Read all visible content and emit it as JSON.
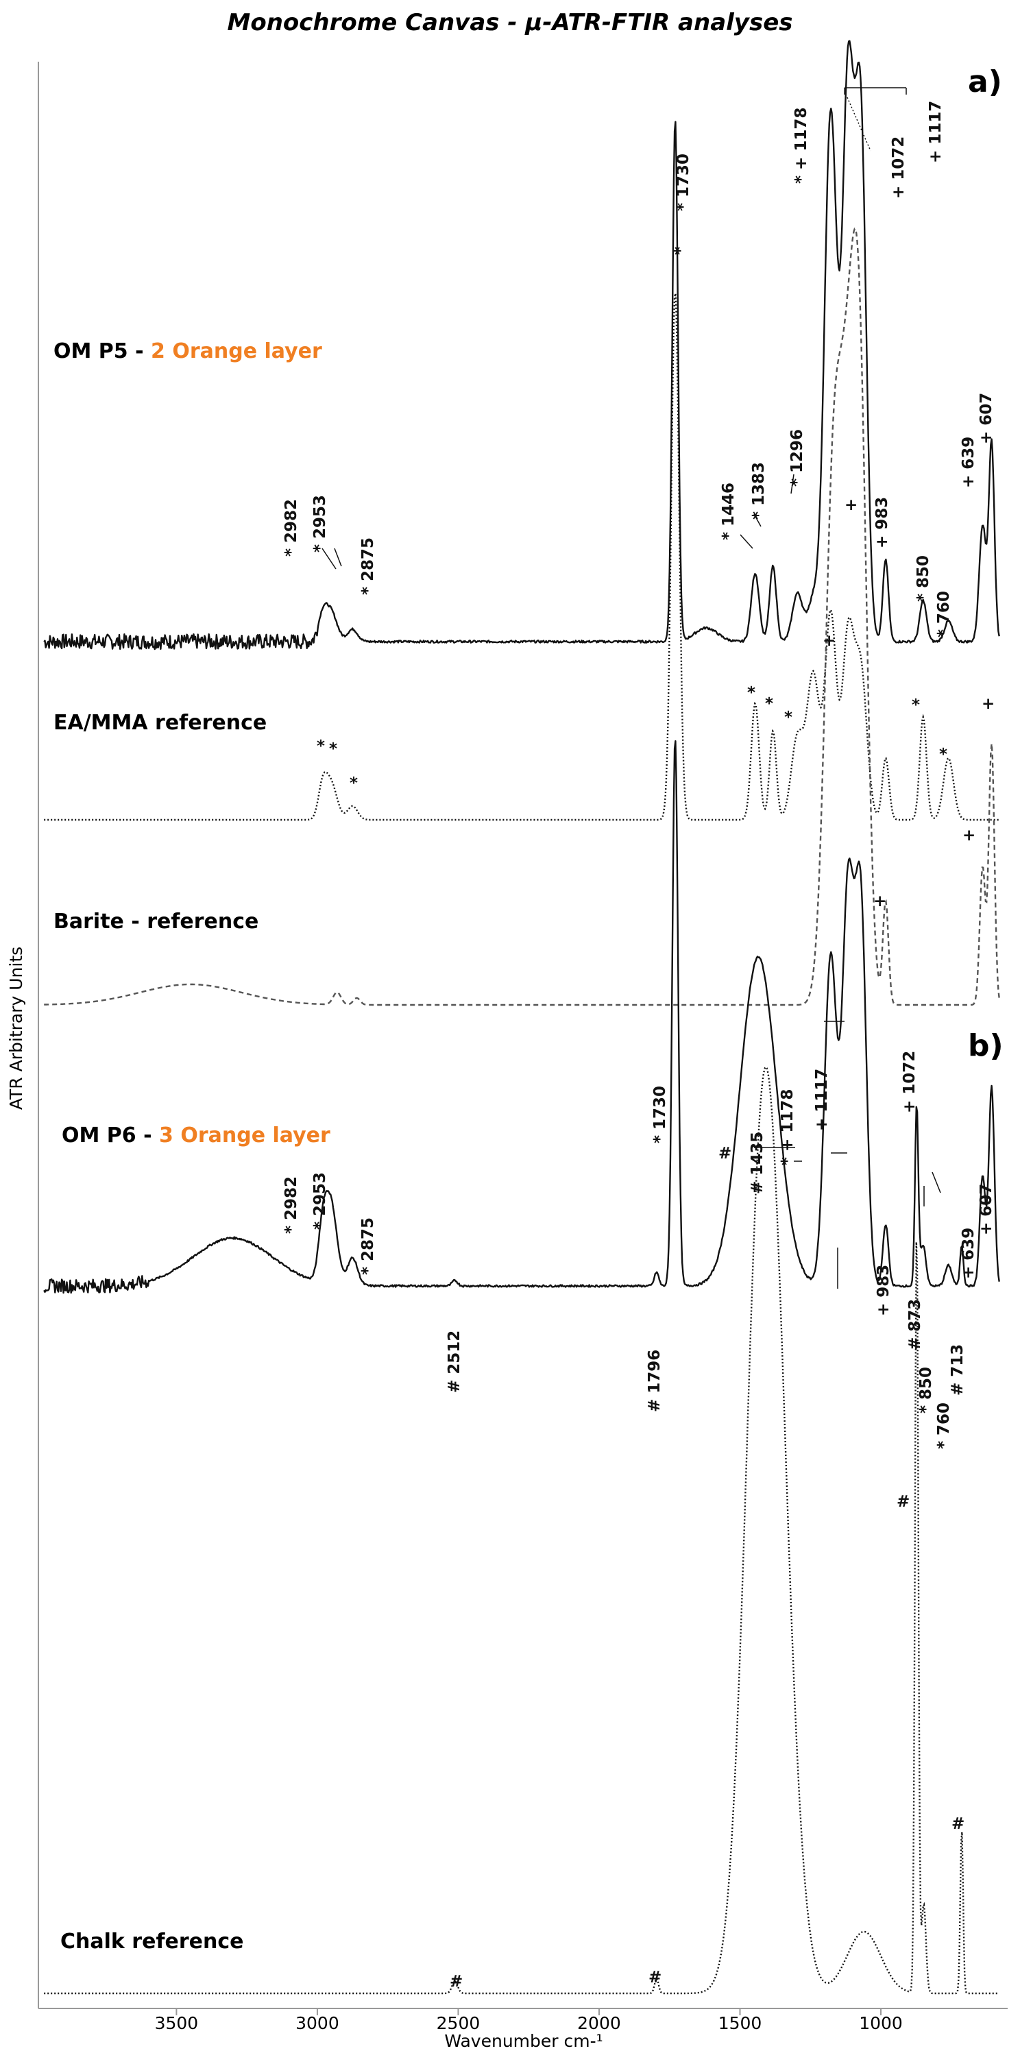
{
  "chart_data": {
    "type": "line",
    "title": "Monochrome Canvas - μ-ATR-FTIR analyses",
    "xlabel": "Wavenumber cm-¹",
    "ylabel": "ATR Arbitrary Units",
    "xlim": [
      3990,
      550
    ],
    "xreversed": true,
    "xticks": [
      3500,
      3000,
      2500,
      2000,
      1500,
      1000
    ],
    "grid": false,
    "accent_color": "#f07f22",
    "panels": [
      {
        "label": "a)",
        "traces": [
          {
            "label_prefix": "OM P5 - ",
            "label_highlight": "2 Orange  layer",
            "style": "solid",
            "annotations": [
              "* 2982",
              "* 2953",
              "* 2875",
              "* 1730",
              "*",
              "* + 1178",
              "+ 1072",
              "+ 1117",
              "* 1446",
              "* 1383",
              "* 1296",
              "+ 983",
              "* 850",
              "* 760",
              "+ 639",
              "+ 607"
            ]
          },
          {
            "label": "EA/MMA reference",
            "style": "dotted",
            "annotations": [
              "*",
              "*",
              "*",
              "*",
              "*",
              "*",
              "*",
              "*",
              "+",
              "+",
              "+"
            ]
          },
          {
            "label": "Barite - reference",
            "style": "dashed",
            "annotations": [
              "+",
              "+"
            ]
          }
        ]
      },
      {
        "label": "b)",
        "traces": [
          {
            "label_prefix": "OM P6 - ",
            "label_highlight": "3 Orange  layer",
            "style": "solid",
            "annotations": [
              "* 2982",
              "* 2953",
              "* 2875",
              "# 2512",
              "# 1796",
              "* 1730",
              "# 1435",
              "* + 1178",
              "+ 1117",
              "+ 1072",
              "+ 983",
              "# 873",
              "* 850",
              "* 760",
              "# 713",
              "+ 639",
              "+ 607"
            ]
          },
          {
            "label": "Chalk reference",
            "style": "dotted",
            "annotations": [
              "#",
              "#",
              "#",
              "#",
              "#"
            ]
          }
        ]
      }
    ]
  }
}
